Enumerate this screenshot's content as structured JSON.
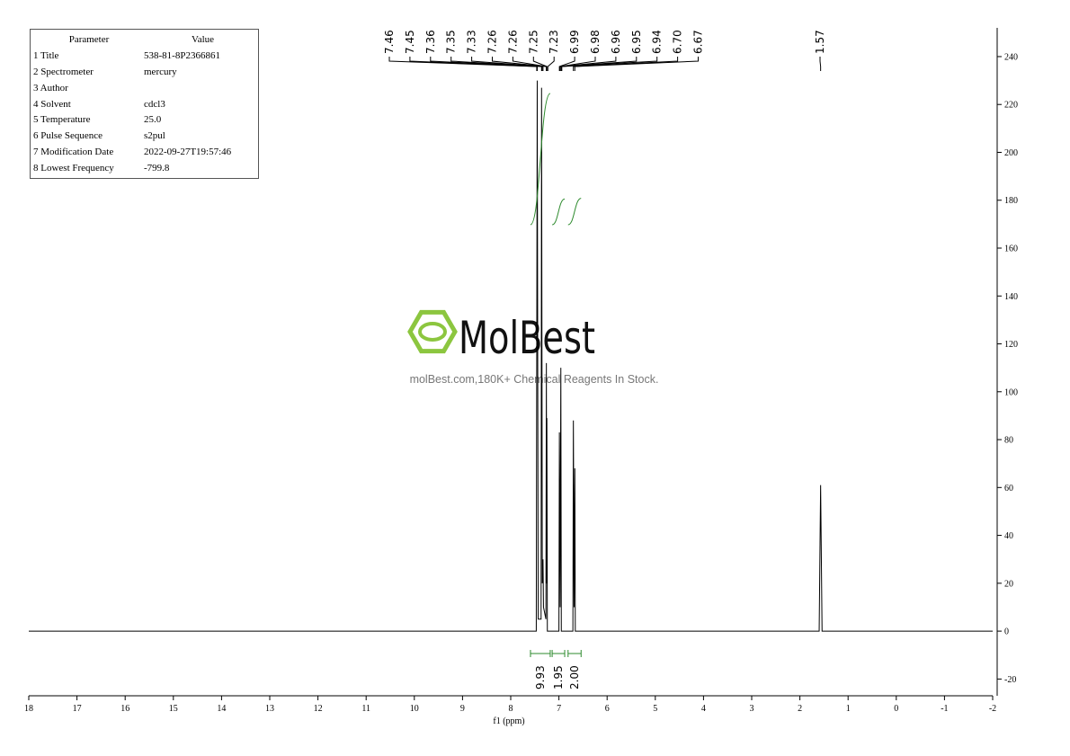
{
  "chart_data": {
    "type": "spectrum",
    "parameters": {
      "header": [
        "Parameter",
        "Value"
      ],
      "rows": [
        [
          "1 Title",
          "538-81-8P2366861"
        ],
        [
          "2 Spectrometer",
          "mercury"
        ],
        [
          "3 Author",
          ""
        ],
        [
          "4 Solvent",
          "cdcl3"
        ],
        [
          "5 Temperature",
          "25.0"
        ],
        [
          "6 Pulse Sequence",
          "s2pul"
        ],
        [
          "7 Modification Date",
          "2022-09-27T19:57:46"
        ],
        [
          "8 Lowest Frequency",
          "-799.8"
        ]
      ]
    },
    "watermark": "MolBest",
    "watermark_subtitle": "molBest.com,180K+ Chemical Reagents In Stock.",
    "xlabel": "f1 (ppm)",
    "xlim": [
      18,
      -2
    ],
    "xticks": [
      18,
      17,
      16,
      15,
      14,
      13,
      12,
      11,
      10,
      9,
      8,
      7,
      6,
      5,
      4,
      3,
      2,
      1,
      0,
      -1,
      -2
    ],
    "ylim": [
      -27,
      252
    ],
    "yticks": [
      -20,
      0,
      20,
      40,
      60,
      80,
      100,
      120,
      140,
      160,
      180,
      200,
      220,
      240
    ],
    "color": "#000000",
    "x": [
      18,
      7.62,
      7.47,
      7.45,
      7.43,
      7.37,
      7.36,
      7.345,
      7.33,
      7.32,
      7.27,
      7.26,
      7.255,
      7.25,
      7.24,
      7.0,
      6.99,
      6.975,
      6.96,
      6.95,
      6.71,
      6.7,
      6.685,
      6.67,
      6.66,
      1.6,
      1.57,
      1.54,
      -2
    ],
    "values": [
      0,
      0,
      0,
      230,
      5,
      5,
      227,
      20,
      30,
      10,
      5,
      112,
      20,
      89,
      0,
      0,
      83,
      10,
      110,
      0,
      0,
      88,
      10,
      68,
      0,
      0,
      61,
      0,
      0
    ],
    "peaks": [
      7.46,
      7.45,
      7.36,
      7.35,
      7.33,
      7.26,
      7.26,
      7.25,
      7.23,
      6.99,
      6.98,
      6.96,
      6.95,
      6.94,
      {
        "value": 6.7,
        "label": "6.70"
      },
      6.67
    ],
    "peaks2": [
      1.57
    ],
    "integral_color": "#2e8b2e",
    "integral_ranges": [
      [
        7.59,
        7.18
      ],
      [
        7.14,
        6.88
      ],
      [
        6.81,
        6.54
      ]
    ],
    "integral_values": [
      9.93,
      1.95,
      2
    ],
    "integral_labels": [
      "9.93",
      "1.95",
      "2.00"
    ]
  }
}
